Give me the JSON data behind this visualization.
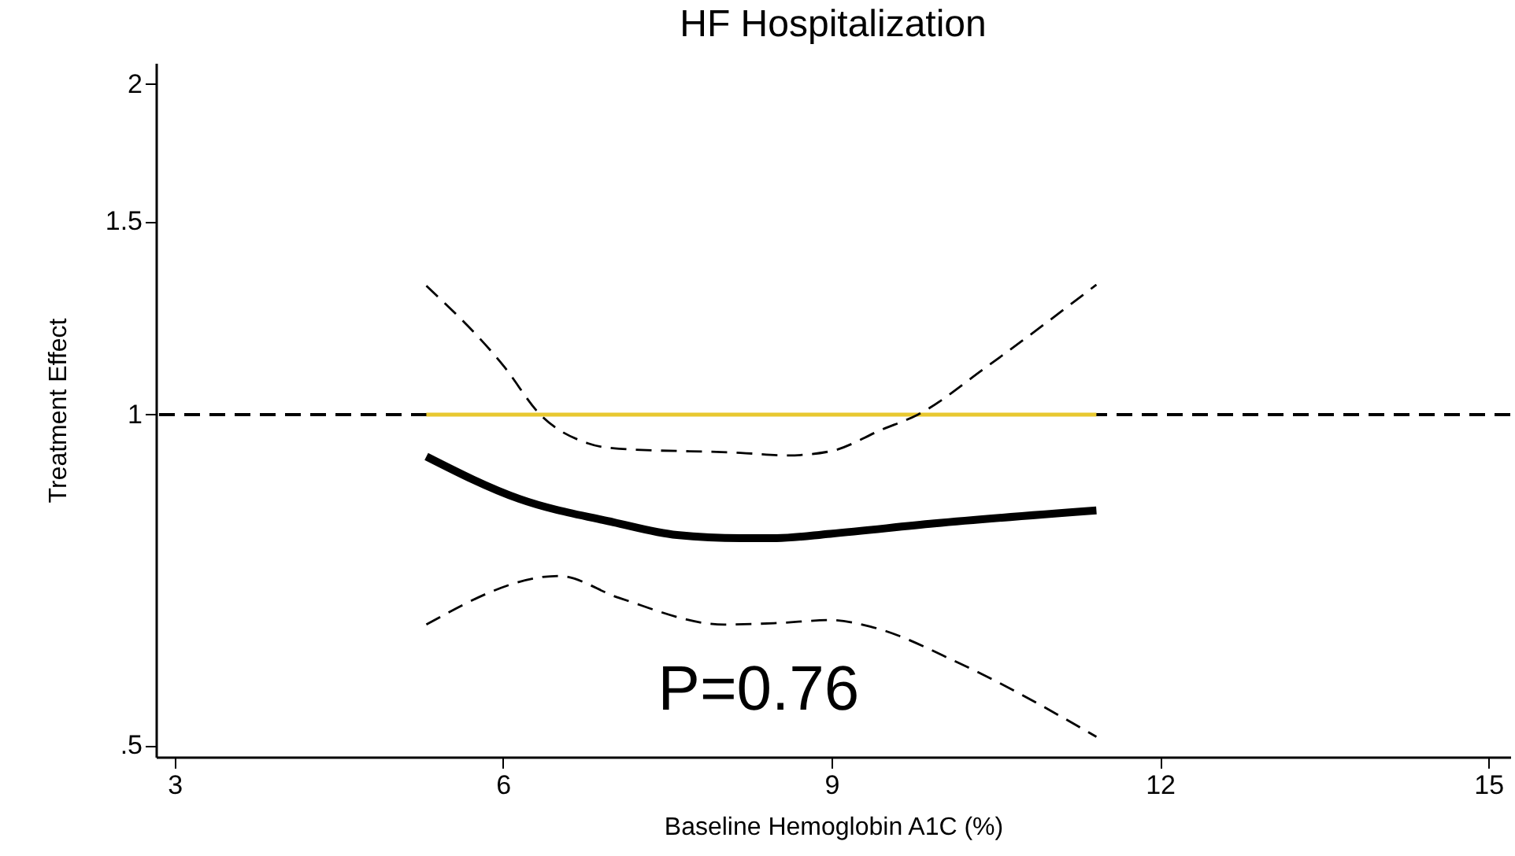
{
  "chart_data": {
    "type": "line",
    "title": "HF Hospitalization",
    "xlabel": "Baseline Hemoglobin A1C (%)",
    "ylabel": "Treatment Effect",
    "log": "y",
    "grid": false,
    "marker": "none",
    "xlim": [
      2.83,
      15.2
    ],
    "xticks": [
      3,
      6,
      9,
      12,
      15
    ],
    "ylim": [
      0.488,
      2.09
    ],
    "yticks": [
      {
        "value": 0.5,
        "label": ".5"
      },
      1,
      1.5,
      2
    ],
    "ref_lines": [
      {
        "axis": "y",
        "value": 1,
        "color": "#000000",
        "line_style": "dashed"
      }
    ],
    "series": [
      {
        "color": "#e8c830",
        "line_style": "solid",
        "x": [
          5.3,
          11.42
        ],
        "values": [
          1,
          1
        ]
      },
      {
        "color": "#000000",
        "line_style": "solid",
        "x": [
          5.3,
          6.15,
          7.01,
          7.59,
          8.17,
          8.5,
          8.99,
          9.94,
          11.42
        ],
        "values": [
          0.916,
          0.838,
          0.798,
          0.777,
          0.772,
          0.772,
          0.779,
          0.796,
          0.818
        ]
      },
      {
        "color": "#000000",
        "line_style": "dashed",
        "x": [
          5.3,
          6.01,
          6.34,
          6.77,
          7.06,
          8.17,
          8.6,
          8.99,
          9.46,
          9.79,
          10.42,
          11.42
        ],
        "values": [
          1.31,
          1.106,
          1.0,
          0.942,
          0.931,
          0.923,
          0.918,
          0.926,
          0.969,
          1.0,
          1.106,
          1.313
        ]
      },
      {
        "color": "#000000",
        "line_style": "dashed",
        "x": [
          5.3,
          6.51,
          7.06,
          8.02,
          8.5,
          8.99,
          9.36,
          10.18,
          11.42
        ],
        "values": [
          0.644,
          0.713,
          0.681,
          0.644,
          0.646,
          0.65,
          0.641,
          0.593,
          0.509
        ]
      }
    ],
    "annotations": [
      "P=0.76"
    ]
  }
}
